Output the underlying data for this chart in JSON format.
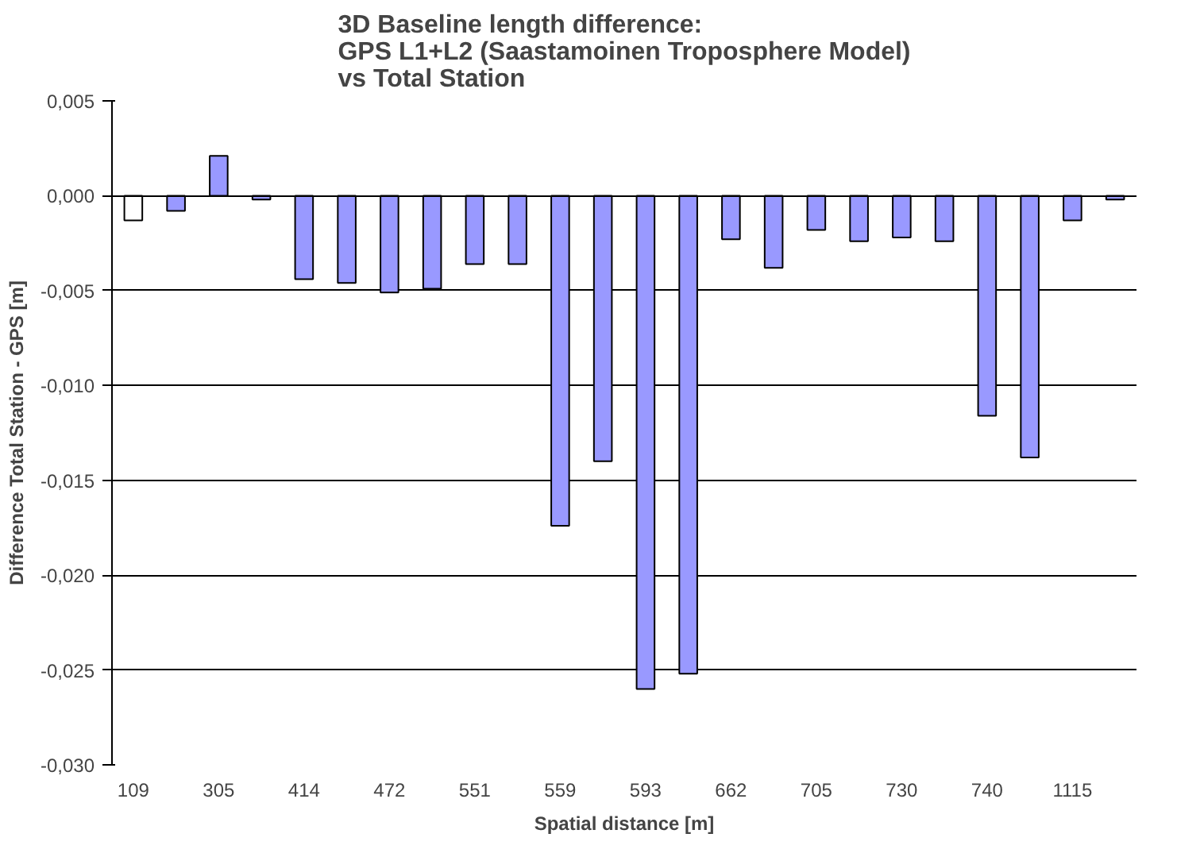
{
  "chart_data": {
    "type": "bar",
    "title": "3D Baseline length difference:\nGPS L1+L2 (Saastamoinen Troposphere Model)\nvs Total Station",
    "xlabel": "Spatial distance [m]",
    "ylabel": "Difference Total Station - GPS [m]",
    "categories": [
      "109",
      null,
      "305",
      null,
      "414",
      null,
      "472",
      null,
      "551",
      null,
      "559",
      null,
      "593",
      null,
      "662",
      null,
      "705",
      null,
      "730",
      null,
      "740",
      null,
      "1115",
      null
    ],
    "values": [
      -0.0013,
      -0.0008,
      0.0021,
      -0.0002,
      -0.0044,
      -0.0046,
      -0.0051,
      -0.0049,
      -0.0036,
      -0.0036,
      -0.0174,
      -0.014,
      -0.026,
      -0.0252,
      -0.0023,
      -0.0038,
      -0.0018,
      -0.0024,
      -0.0022,
      -0.0024,
      -0.0116,
      -0.0138,
      -0.0013,
      -0.0002
    ],
    "colors": [
      "#ffffff",
      "#9999ff",
      "#9999ff",
      "#9999ff",
      "#9999ff",
      "#9999ff",
      "#9999ff",
      "#9999ff",
      "#9999ff",
      "#9999ff",
      "#9999ff",
      "#9999ff",
      "#9999ff",
      "#9999ff",
      "#9999ff",
      "#9999ff",
      "#9999ff",
      "#9999ff",
      "#9999ff",
      "#9999ff",
      "#9999ff",
      "#9999ff",
      "#9999ff",
      "#9999ff"
    ],
    "ylim": [
      -0.03,
      0.005
    ],
    "yticks": [
      {
        "value": -0.03,
        "label": "-0,030"
      },
      {
        "value": -0.025,
        "label": "-0,025"
      },
      {
        "value": -0.02,
        "label": "-0,020"
      },
      {
        "value": -0.015,
        "label": "-0,015"
      },
      {
        "value": -0.01,
        "label": "-0,010"
      },
      {
        "value": -0.005,
        "label": "-0,005"
      },
      {
        "value": 0,
        "label": "0,000"
      },
      {
        "value": 0.005,
        "label": "0,005"
      }
    ],
    "grid": "y"
  }
}
